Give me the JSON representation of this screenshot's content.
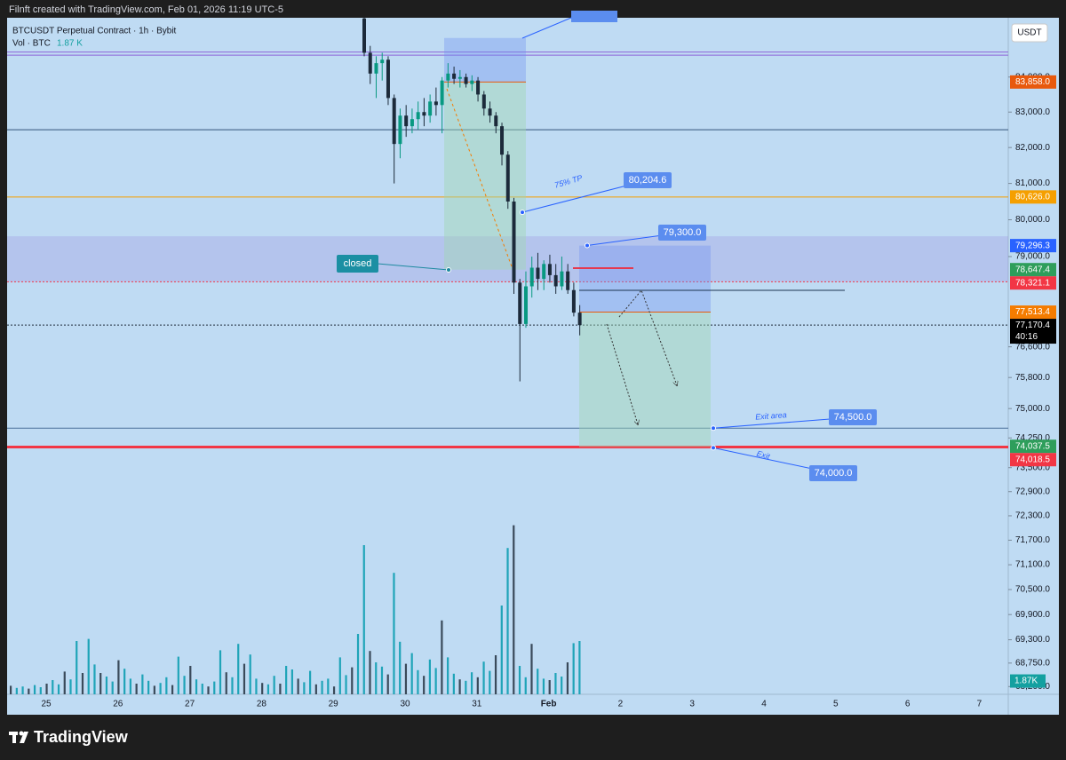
{
  "header": {
    "text": "Filnft created with TradingView.com, Feb 01, 2026 11:19 UTC-5"
  },
  "legend": {
    "symbol": "BTCUSDT Perpetual Contract · 1h · Bybit",
    "volume_label": "Vol · BTC",
    "volume_value": "1.87 K"
  },
  "brand": "TradingView",
  "price_axis": {
    "currency": "USDT",
    "ylim": [
      68020,
      85720
    ],
    "log_scale": true,
    "ticks": [
      {
        "value": 84000,
        "label": "84,000.0"
      },
      {
        "value": 83000,
        "label": "83,000.0"
      },
      {
        "value": 82000,
        "label": "82,000.0"
      },
      {
        "value": 81000,
        "label": "81,000.0"
      },
      {
        "value": 80000,
        "label": "80,000.0"
      },
      {
        "value": 79000,
        "label": "79,000.0"
      },
      {
        "value": 76600,
        "label": "76,600.0"
      },
      {
        "value": 75800,
        "label": "75,800.0"
      },
      {
        "value": 75000,
        "label": "75,000.0"
      },
      {
        "value": 74250,
        "label": "74,250.0"
      },
      {
        "value": 73500,
        "label": "73,500.0"
      },
      {
        "value": 72900,
        "label": "72,900.0"
      },
      {
        "value": 72300,
        "label": "72,300.0"
      },
      {
        "value": 71700,
        "label": "71,700.0"
      },
      {
        "value": 71100,
        "label": "71,100.0"
      },
      {
        "value": 70500,
        "label": "70,500.0"
      },
      {
        "value": 69900,
        "label": "69,900.0"
      },
      {
        "value": 69300,
        "label": "69,300.0"
      },
      {
        "value": 68750,
        "label": "68,750.0"
      },
      {
        "value": 68200,
        "label": "68,200.0"
      }
    ]
  },
  "price_tags": [
    {
      "value": 83858,
      "label": "83,858.0",
      "color": "#e8590c"
    },
    {
      "value": 80626,
      "label": "80,626.0",
      "color": "#f59f00"
    },
    {
      "value": 79296.3,
      "label": "79,296.3",
      "color": "#2962ff"
    },
    {
      "value": 78647.4,
      "label": "78,647.4",
      "color": "#2e9e5b"
    },
    {
      "value": 78321.1,
      "label": "78,321.1",
      "color": "#f23645"
    },
    {
      "value": 77513.4,
      "label": "77,513.4",
      "color": "#f57c00"
    },
    {
      "value": 77170.4,
      "label": "77,170.4",
      "color": "#000000",
      "countdown": "40:16"
    },
    {
      "value": 74037.5,
      "label": "74,037.5",
      "color": "#2e9e5b"
    },
    {
      "value": 74018.5,
      "label": "74,018.5",
      "color": "#f23645"
    }
  ],
  "time_axis": {
    "labels": [
      "25",
      "26",
      "27",
      "28",
      "29",
      "30",
      "31",
      "Feb",
      "2",
      "3",
      "4",
      "5",
      "6",
      "7"
    ]
  },
  "candle_colors": {
    "up": "#089981",
    "down": "#1c2a3a"
  },
  "candles": [
    [
      85700,
      85800,
      84600,
      84700
    ],
    [
      84700,
      84900,
      83800,
      84100
    ],
    [
      84100,
      84600,
      83400,
      84400
    ],
    [
      84400,
      84700,
      83900,
      84500
    ],
    [
      84500,
      84600,
      83200,
      83400
    ],
    [
      83400,
      83500,
      81000,
      82100
    ],
    [
      82100,
      83100,
      81700,
      82900
    ],
    [
      82900,
      83200,
      82300,
      82600
    ],
    [
      82600,
      83100,
      82400,
      82800
    ],
    [
      82800,
      83300,
      82500,
      83000
    ],
    [
      83000,
      83400,
      82600,
      82900
    ],
    [
      82900,
      83500,
      82700,
      83300
    ],
    [
      83300,
      83700,
      82900,
      83200
    ],
    [
      83200,
      84000,
      82400,
      83900
    ],
    [
      83900,
      84400,
      83700,
      84100
    ],
    [
      84100,
      84300,
      83800,
      83950
    ],
    [
      83950,
      84200,
      83700,
      84000
    ],
    [
      84000,
      84100,
      83700,
      83800
    ],
    [
      83800,
      84050,
      83600,
      83900
    ],
    [
      83900,
      84000,
      83300,
      83500
    ],
    [
      83500,
      83600,
      82900,
      83100
    ],
    [
      83100,
      83300,
      82700,
      82900
    ],
    [
      82900,
      83000,
      82400,
      82600
    ],
    [
      82600,
      82700,
      81500,
      81800
    ],
    [
      81800,
      81900,
      80300,
      80500
    ],
    [
      80500,
      80600,
      78000,
      78300
    ],
    [
      78300,
      78400,
      75700,
      77200
    ],
    [
      77200,
      78600,
      77100,
      78200
    ],
    [
      78200,
      79000,
      77900,
      78700
    ],
    [
      78700,
      79100,
      78100,
      78400
    ],
    [
      78400,
      78900,
      78100,
      78800
    ],
    [
      78800,
      79050,
      78300,
      78500
    ],
    [
      78500,
      78800,
      78000,
      78200
    ],
    [
      78200,
      79000,
      78100,
      78600
    ],
    [
      78600,
      78800,
      78000,
      78100
    ],
    [
      78100,
      78300,
      77400,
      77500
    ],
    [
      77500,
      77700,
      76900,
      77170.4
    ]
  ],
  "volume": {
    "values": [
      1.2,
      0.9,
      1.1,
      0.8,
      1.3,
      1.0,
      1.5,
      2.0,
      1.4,
      3.2,
      2.1,
      7.5,
      3.0,
      7.8,
      4.2,
      3.0,
      2.5,
      1.8,
      4.8,
      3.6,
      2.2,
      1.5,
      2.8,
      1.9,
      1.2,
      1.6,
      2.4,
      1.3,
      5.3,
      2.6,
      4.0,
      2.1,
      1.5,
      1.1,
      1.8,
      6.2,
      3.1,
      2.4,
      7.1,
      4.3,
      5.6,
      2.2,
      1.6,
      1.4,
      2.6,
      1.5,
      4.0,
      3.5,
      2.2,
      1.7,
      3.3,
      1.4,
      1.9,
      2.2,
      1.1,
      5.2,
      2.7,
      3.8,
      8.5,
      21.0,
      6.1,
      4.5,
      3.9,
      2.8,
      17.1,
      7.4,
      4.3,
      5.8,
      3.4,
      2.6,
      4.9,
      3.7,
      10.4,
      5.2,
      2.9,
      2.1,
      1.9,
      3.1,
      2.4,
      4.6,
      3.3,
      5.5,
      12.5,
      20.6,
      23.8,
      4.0,
      2.4,
      7.1,
      3.6,
      2.2,
      2.0,
      3.0,
      2.5,
      4.5,
      7.2,
      7.5
    ],
    "tag": {
      "value": 1.87,
      "label": "1.87K",
      "color": "#14a0a0"
    }
  },
  "levels": [
    {
      "price": 84720,
      "color": "#8e63d9"
    },
    {
      "price": 84630,
      "color": "#8e63d9"
    },
    {
      "price": 82500,
      "color": "#34557a"
    },
    {
      "price": 80626,
      "color": "#f59f00"
    },
    {
      "price": 74500,
      "color": "#4a6f9a"
    },
    {
      "price": 74018.5,
      "color": "#f23645",
      "width": 3
    },
    {
      "price": 77170.4,
      "color": "#1c2a3a",
      "dash": true
    },
    {
      "price": 78321.1,
      "color": "#f23645",
      "dash": true
    }
  ],
  "band": {
    "from": 79550,
    "to": 78321.1
  },
  "positions": [
    {
      "stop": 85130,
      "entry": 83858,
      "target": 78647.4
    },
    {
      "stop": 79296.3,
      "entry": 77513.4,
      "target": 74018.5
    }
  ],
  "annotations": [
    {
      "value": 80204.6,
      "label": "80,204.6"
    },
    {
      "value": 79300,
      "label": "79,300.0"
    },
    {
      "value": 74500,
      "label": "74,500.0"
    },
    {
      "value": 74000,
      "label": "74,000.0"
    }
  ],
  "texts": {
    "closed": "closed",
    "tp": "75% TP",
    "exit_area": "Exit area",
    "exit": "Exit"
  }
}
